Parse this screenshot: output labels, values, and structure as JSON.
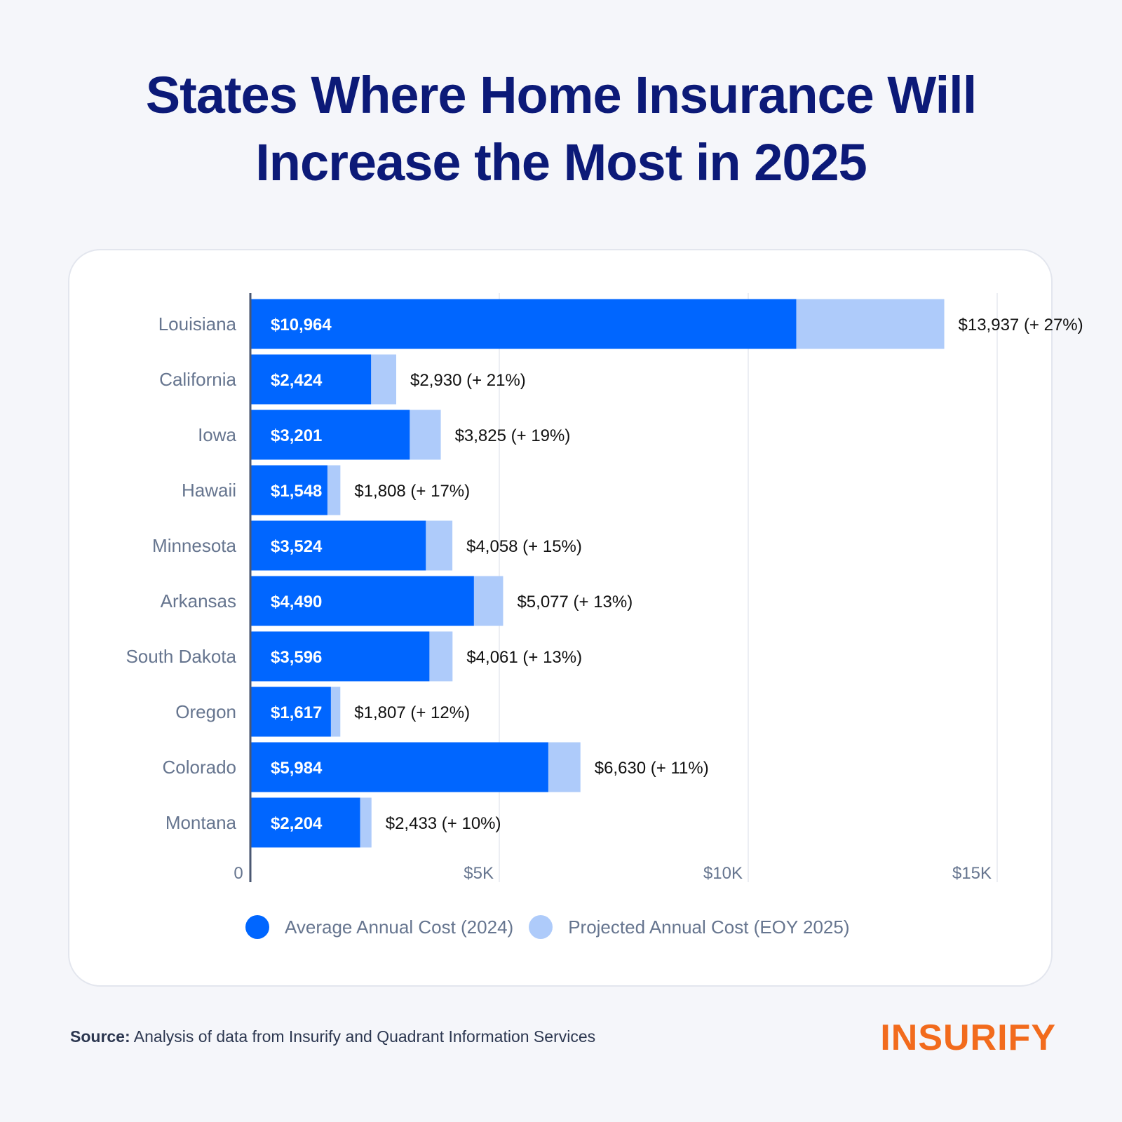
{
  "title": {
    "line1": "States Where Home Insurance Will",
    "line2": "Increase the Most in 2025"
  },
  "colors": {
    "title": "#0c1a78",
    "current": "#0066ff",
    "projected": "#aecbfa",
    "axis_text": "#66758f",
    "grid": "#e6e9ef",
    "brand": "#f26b1d"
  },
  "legend": {
    "current_label": "Average Annual Cost (2024)",
    "projected_label": "Projected Annual Cost (EOY 2025)"
  },
  "source": {
    "label": "Source:",
    "text": "Analysis of data from Insurify and Quadrant Information Services"
  },
  "brand": {
    "name": "INSURIFY"
  },
  "chart_data": {
    "type": "bar",
    "orientation": "horizontal",
    "categories": [
      "Louisiana",
      "California",
      "Iowa",
      "Hawaii",
      "Minnesota",
      "Arkansas",
      "South Dakota",
      "Oregon",
      "Colorado",
      "Montana"
    ],
    "series": [
      {
        "name": "Average Annual Cost (2024)",
        "values": [
          10964,
          2424,
          3201,
          1548,
          3524,
          4490,
          3596,
          1617,
          5984,
          2204
        ]
      },
      {
        "name": "Projected Annual Cost (EOY 2025)",
        "values": [
          13937,
          2930,
          3825,
          1808,
          4058,
          5077,
          4061,
          1807,
          6630,
          2433
        ]
      }
    ],
    "current_labels": [
      "$10,964",
      "$2,424",
      "$3,201",
      "$1,548",
      "$3,524",
      "$4,490",
      "$3,596",
      "$1,617",
      "$5,984",
      "$2,204"
    ],
    "projected_labels": [
      "$13,937 (+ 27%)",
      "$2,930 (+ 21%)",
      "$3,825 (+ 19%)",
      "$1,808 (+ 17%)",
      "$4,058 (+ 15%)",
      "$5,077 (+ 13%)",
      "$4,061 (+ 13%)",
      "$1,807 (+ 12%)",
      "$6,630 (+ 11%)",
      "$2,433 (+ 10%)"
    ],
    "x_ticks": [
      0,
      5000,
      10000,
      15000
    ],
    "x_tick_labels": [
      "0",
      "$5K",
      "$10K",
      "$15K"
    ],
    "xlim": [
      0,
      15000
    ],
    "grid": true,
    "legend_position": "bottom"
  }
}
